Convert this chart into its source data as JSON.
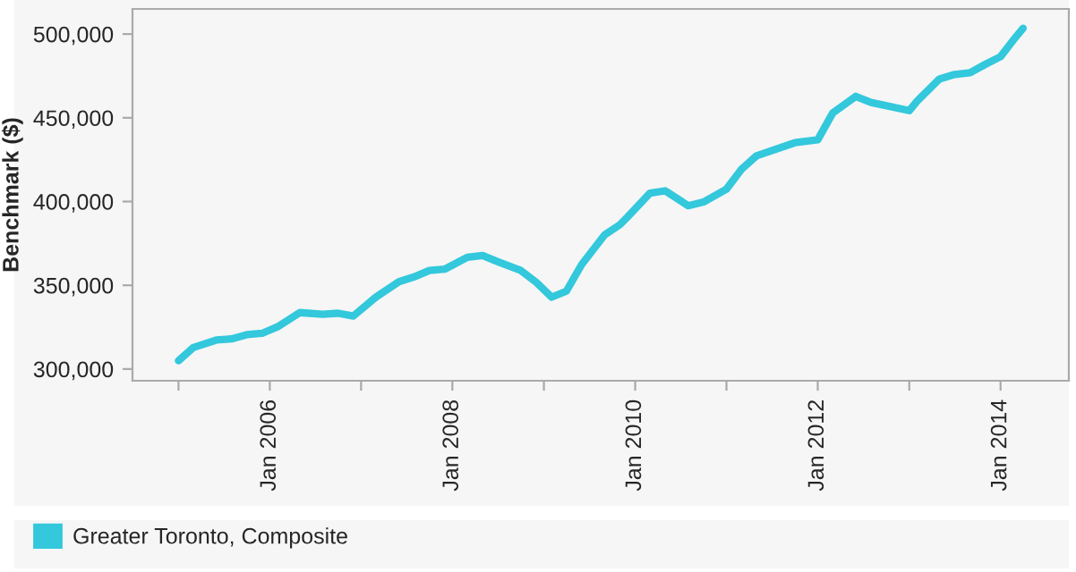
{
  "chart_data": {
    "type": "line",
    "ylabel": "Benchmark ($)",
    "x": [
      "2005-01",
      "2005-03",
      "2005-06",
      "2005-08",
      "2005-10",
      "2005-12",
      "2006-02",
      "2006-05",
      "2006-08",
      "2006-10",
      "2006-12",
      "2007-03",
      "2007-06",
      "2007-08",
      "2007-10",
      "2007-12",
      "2008-03",
      "2008-05",
      "2008-07",
      "2008-10",
      "2008-12",
      "2009-02",
      "2009-04",
      "2009-06",
      "2009-09",
      "2009-11",
      "2009-12",
      "2010-03",
      "2010-05",
      "2010-08",
      "2010-10",
      "2011-01",
      "2011-03",
      "2011-05",
      "2011-10",
      "2012-01",
      "2012-03",
      "2012-06",
      "2012-08",
      "2013-01",
      "2013-02",
      "2013-05",
      "2013-07",
      "2013-09",
      "2013-11",
      "2014-01",
      "2014-03",
      "2014-04"
    ],
    "series": [
      {
        "name": "Greater Toronto, Composite",
        "color": "#33c8dc",
        "values": [
          305000,
          312800,
          317300,
          318000,
          320500,
          321300,
          325200,
          333700,
          332700,
          333300,
          331600,
          342900,
          352100,
          355000,
          358800,
          359600,
          366700,
          367800,
          364100,
          358800,
          351800,
          342900,
          346500,
          362400,
          380100,
          386200,
          390700,
          405000,
          406400,
          397500,
          399700,
          407400,
          419100,
          427300,
          435100,
          436900,
          452900,
          462800,
          459200,
          454300,
          459900,
          473100,
          475900,
          476900,
          481900,
          486500,
          497900,
          503500
        ]
      }
    ],
    "xlim": [
      "2004-07",
      "2014-10"
    ],
    "xticks": [
      {
        "value": "2005-01",
        "label": null
      },
      {
        "value": "2006-01",
        "label": "Jan 2006"
      },
      {
        "value": "2007-01",
        "label": null
      },
      {
        "value": "2008-01",
        "label": "Jan 2008"
      },
      {
        "value": "2009-01",
        "label": null
      },
      {
        "value": "2010-01",
        "label": "Jan 2010"
      },
      {
        "value": "2011-01",
        "label": null
      },
      {
        "value": "2012-01",
        "label": "Jan 2012"
      },
      {
        "value": "2013-01",
        "label": null
      },
      {
        "value": "2014-01",
        "label": "Jan 2014"
      }
    ],
    "ylim": [
      293000,
      515000
    ],
    "yticks": [
      {
        "value": 300000,
        "label": "300,000"
      },
      {
        "value": 350000,
        "label": "350,000"
      },
      {
        "value": 400000,
        "label": "400,000"
      },
      {
        "value": 450000,
        "label": "450,000"
      },
      {
        "value": 500000,
        "label": "500,000"
      }
    ],
    "grid": false,
    "legend": "bottom",
    "marker": "none",
    "line_style": "solid"
  }
}
